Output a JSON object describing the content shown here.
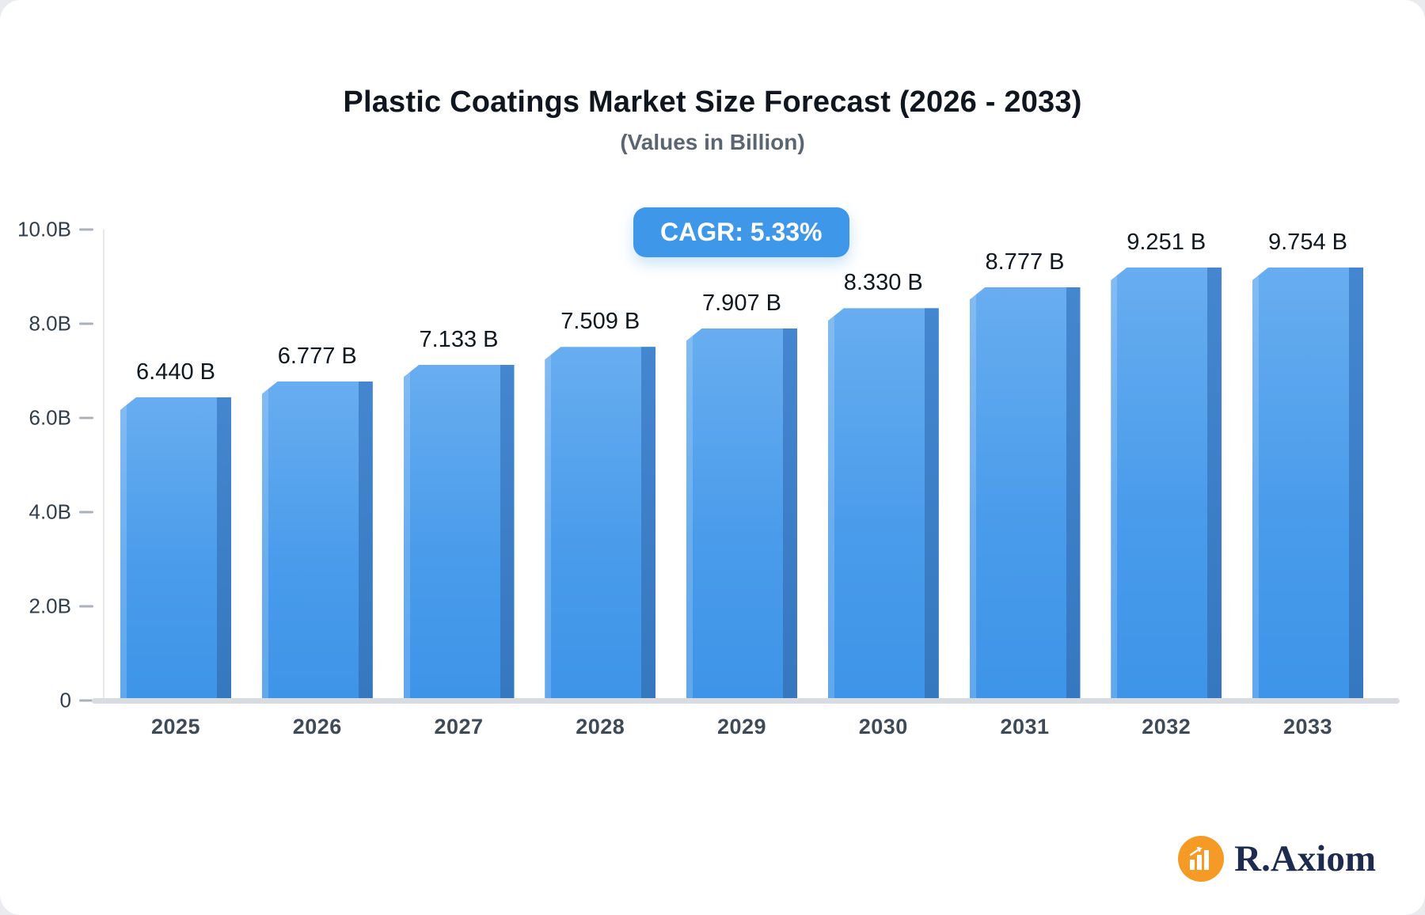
{
  "page": {
    "background": "#e9ebee",
    "card_background": "#ffffff"
  },
  "header": {
    "title": "Plastic Coatings Market Size Forecast (2026 - 2033)",
    "subtitle": "(Values in Billion)"
  },
  "cagr": {
    "label": "CAGR: 5.33%",
    "background": "#3f97ea"
  },
  "branding": {
    "name": "R.Axiom",
    "icon": "bar-chart-logo-icon",
    "icon_color": "#f59b25",
    "text_color": "#1d2b4f"
  },
  "chart_data": {
    "type": "bar",
    "title": "Plastic Coatings Market Size Forecast (2026 - 2033)",
    "subtitle": "(Values in Billion)",
    "annotation": "CAGR: 5.33%",
    "categories": [
      "2025",
      "2026",
      "2027",
      "2028",
      "2029",
      "2030",
      "2031",
      "2032",
      "2033"
    ],
    "values": [
      6.44,
      6.777,
      7.133,
      7.509,
      7.907,
      8.33,
      8.777,
      9.251,
      9.754
    ],
    "value_labels": [
      "6.440 B",
      "6.777 B",
      "7.133 B",
      "7.509 B",
      "7.907 B",
      "8.330 B",
      "8.777 B",
      "9.251 B",
      "9.754 B"
    ],
    "ylim": [
      0,
      10
    ],
    "y_ticks": [
      {
        "value": 10,
        "label": "10.0B"
      },
      {
        "value": 8,
        "label": "8.0B"
      },
      {
        "value": 6,
        "label": "6.0B"
      },
      {
        "value": 4,
        "label": "4.0B"
      },
      {
        "value": 2,
        "label": "2.0B"
      },
      {
        "value": 0,
        "label": "0"
      }
    ],
    "grid": false,
    "legend_position": "none",
    "bar_color_top": "#68adf0",
    "bar_color_bottom": "#3e94e8",
    "bar_side_color": "#3578c0"
  }
}
